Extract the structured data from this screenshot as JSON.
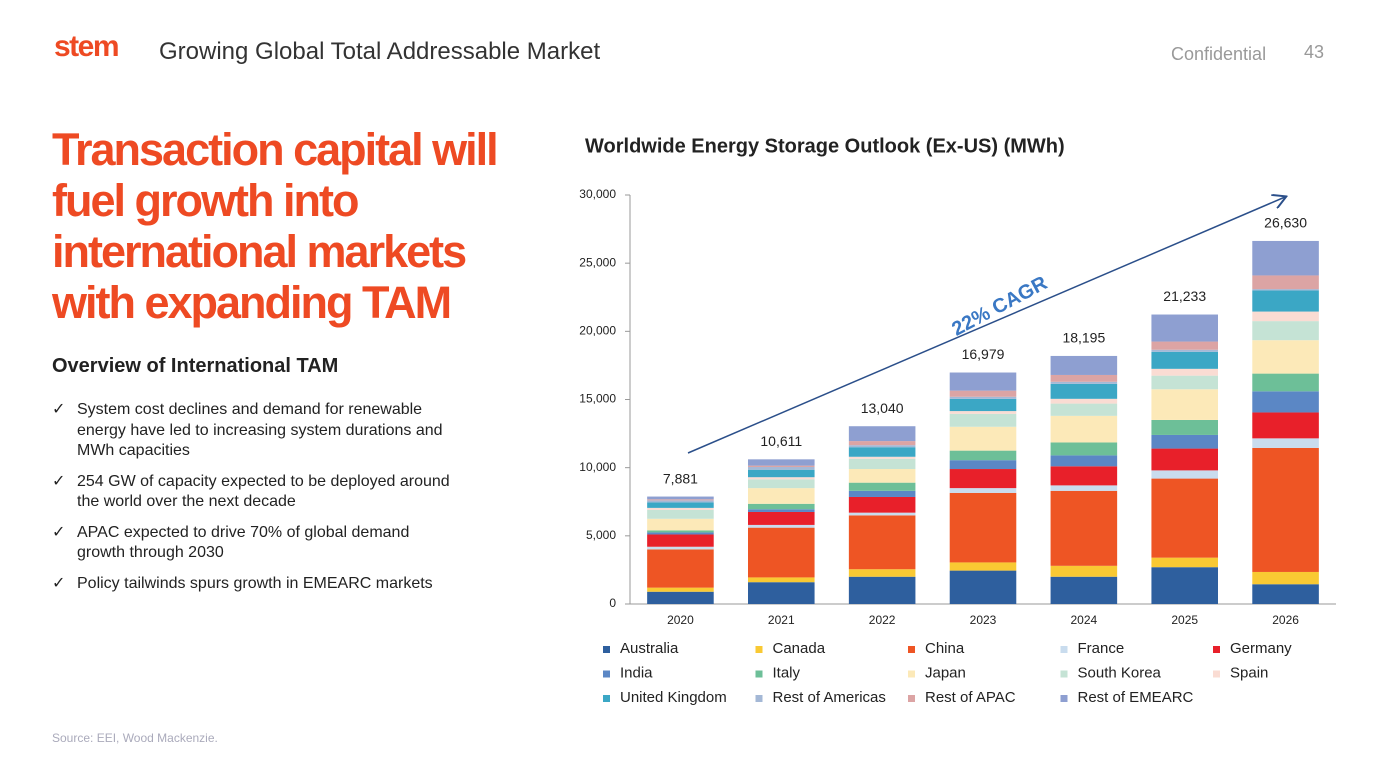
{
  "header": {
    "logo": "stem",
    "title": "Growing Global Total Addressable Market",
    "confidential": "Confidential",
    "page_number": "43"
  },
  "headline": [
    "Transaction capital will",
    "fuel growth into",
    "international markets",
    "with expanding TAM"
  ],
  "overview": {
    "title": "Overview of International TAM",
    "bullets": [
      "System cost declines and demand for renewable energy have led to increasing system durations and MWh capacities",
      "254 GW of capacity expected to be deployed around the world over the next decade",
      "APAC expected to drive 70% of global demand growth through 2030",
      "Policy tailwinds spurs growth in EMEARC markets"
    ]
  },
  "source": "Source: EEI, Wood Mackenzie.",
  "chart_data": {
    "type": "stacked_bar",
    "title": "Worldwide Energy Storage Outlook (Ex-US) (MWh)",
    "annotation": "22% CAGR",
    "categories": [
      "2020",
      "2021",
      "2022",
      "2023",
      "2024",
      "2025",
      "2026"
    ],
    "totals": [
      7881,
      10611,
      13040,
      16979,
      18195,
      21233,
      26630
    ],
    "totals_labels": [
      "7,881",
      "10,611",
      "13,040",
      "16,979",
      "18,195",
      "21,233",
      "26,630"
    ],
    "series": [
      {
        "name": "Australia",
        "color": "#2e5f9e",
        "values": [
          900,
          1600,
          2000,
          2450,
          2000,
          2700,
          1450
        ]
      },
      {
        "name": "Canada",
        "color": "#f9c933",
        "values": [
          300,
          350,
          550,
          600,
          800,
          700,
          900
        ]
      },
      {
        "name": "China",
        "color": "#ee5524",
        "values": [
          2800,
          3650,
          3950,
          5100,
          5500,
          5800,
          9100
        ]
      },
      {
        "name": "France",
        "color": "#c9dcee",
        "values": [
          200,
          200,
          200,
          350,
          400,
          600,
          700
        ]
      },
      {
        "name": "Germany",
        "color": "#e8202a",
        "values": [
          900,
          950,
          1150,
          1400,
          1400,
          1600,
          1900
        ]
      },
      {
        "name": "India",
        "color": "#5b87c5",
        "values": [
          150,
          200,
          450,
          650,
          800,
          1000,
          1550
        ]
      },
      {
        "name": "Italy",
        "color": "#6dbf98",
        "values": [
          150,
          400,
          600,
          700,
          950,
          1100,
          1300
        ]
      },
      {
        "name": "Japan",
        "color": "#fce9b8",
        "values": [
          850,
          1150,
          1000,
          1750,
          1950,
          2250,
          2450
        ]
      },
      {
        "name": "South Korea",
        "color": "#c5e3d5",
        "values": [
          650,
          650,
          750,
          950,
          900,
          1000,
          1400
        ]
      },
      {
        "name": "Spain",
        "color": "#fadcd3",
        "values": [
          150,
          150,
          150,
          200,
          350,
          500,
          700
        ]
      },
      {
        "name": "United Kingdom",
        "color": "#3ba7c5",
        "values": [
          400,
          550,
          700,
          900,
          1100,
          1250,
          1550
        ]
      },
      {
        "name": "Rest of Americas",
        "color": "#a4b8d6",
        "values": [
          150,
          200,
          150,
          150,
          150,
          150,
          100
        ]
      },
      {
        "name": "Rest of APAC",
        "color": "#dca4a4",
        "values": [
          80,
          100,
          300,
          450,
          500,
          600,
          1000
        ]
      },
      {
        "name": "Rest of EMEARC",
        "color": "#8e9fd1",
        "values": [
          201,
          461,
          1090,
          1329,
          1395,
          1983,
          2530
        ]
      }
    ],
    "ylim": [
      0,
      30000
    ],
    "yticks": [
      0,
      {
        "value": 5000,
        "label": "5,000"
      },
      {
        "value": 10000,
        "label": "10,000"
      },
      {
        "value": 15000,
        "label": "15,000"
      },
      {
        "value": 20000,
        "label": "20,000"
      },
      {
        "value": 25000,
        "label": "25,000"
      },
      {
        "value": 30000,
        "label": "30,000"
      }
    ],
    "legend": "bottom"
  }
}
